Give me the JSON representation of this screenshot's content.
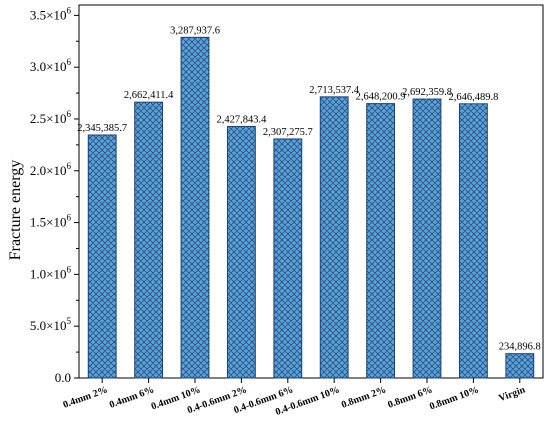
{
  "chart_data": {
    "type": "bar",
    "title": "",
    "xlabel": "",
    "ylabel": "Fracture energy",
    "categories": [
      "0.4mm 2%",
      "0.4mm 6%",
      "0.4mm 10%",
      "0.4-0.6mm 2%",
      "0.4-0.6mm 6%",
      "0.4-0.6mm 10%",
      "0.8mm 2%",
      "0.8mm 6%",
      "0.8mm 10%",
      "Virgin"
    ],
    "values": [
      2345385.7,
      2662411.4,
      3287937.6,
      2427843.4,
      2307275.7,
      2713537.4,
      2648200.9,
      2692359.8,
      2646489.8,
      234896.8
    ],
    "data_labels": [
      "2,345,385.7",
      "2,662,411.4",
      "3,287,937.6",
      "2,427,843.4",
      "2,307,275.7",
      "2,713,537.4",
      "2,648,200.9",
      "2,692,359.8",
      "2,646,489.8",
      "234,896.8"
    ],
    "ylim": [
      0,
      3600000
    ],
    "yticks": [
      0,
      500000,
      1000000,
      1500000,
      2000000,
      2500000,
      3000000,
      3500000
    ],
    "ytick_labels": [
      "0.0",
      "5.0×10",
      "1.0×10",
      "1.5×10",
      "2.0×10",
      "2.5×10",
      "3.0×10",
      "3.5×10"
    ],
    "ytick_exponents": [
      "",
      "5",
      "6",
      "6",
      "6",
      "6",
      "6",
      "6"
    ],
    "bar_color": "#5aa2d8",
    "bar_edge_color": "#1f3f6e",
    "hatch": "crosshatch",
    "grid": false,
    "legend": "none"
  }
}
